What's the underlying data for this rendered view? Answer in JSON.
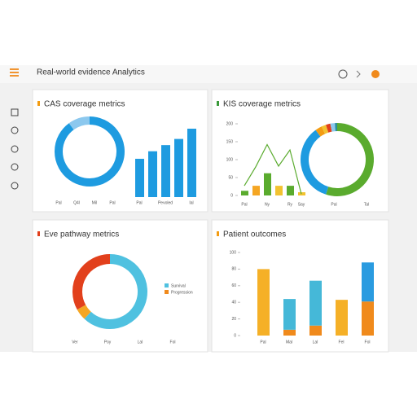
{
  "header": {
    "title": "Real-world evidence Analytics"
  },
  "panels": [
    {
      "title": "CAS coverage metrics",
      "accent": "#f39c12",
      "donut": {
        "values": [
          90,
          10
        ],
        "colors": [
          "#1e9be0",
          "#8cc8ee"
        ],
        "axis_labels": [
          "Pal",
          "Q4l",
          "Mil",
          "Pal"
        ]
      },
      "bars": {
        "categories": [
          "Pal",
          null,
          "Pevoled",
          null,
          "Ial"
        ],
        "values": [
          56,
          67,
          76,
          85,
          100
        ],
        "color": "#1e9be0",
        "ylim": [
          0,
          100
        ]
      }
    },
    {
      "title": "KIS coverage metrics",
      "accent": "#3a9a3a",
      "combo": {
        "categories": [
          "Pal",
          null,
          "Ny",
          null,
          "Ry",
          "Say"
        ],
        "bar_values": [
          13,
          27,
          62,
          27,
          27,
          9
        ],
        "bar_colors": [
          "#5aab2e",
          "#f5a623",
          "#5aab2e",
          "#f2c230",
          "#5aab2e",
          "#f2c230"
        ],
        "line_values": [
          27,
          80,
          142,
          82,
          127,
          4
        ],
        "line_color": "#5aab2e",
        "ylim": [
          0,
          200
        ],
        "yticks": [
          0,
          50,
          100,
          150,
          200
        ]
      },
      "donut": {
        "values": [
          55,
          35,
          3,
          2,
          2,
          2,
          1
        ],
        "colors": [
          "#5aab2e",
          "#1e9be0",
          "#f39c12",
          "#f2c230",
          "#e2401c",
          "#8cc8ee",
          "#2a8f9a"
        ],
        "axis_labels": [
          "Pal",
          "Tal"
        ]
      }
    },
    {
      "title": "Eve pathway metrics",
      "accent": "#e2401c",
      "donut": {
        "values": [
          62,
          5,
          33
        ],
        "colors": [
          "#4fc1e0",
          "#f5a623",
          "#e2401c"
        ],
        "axis_labels": [
          "Ver",
          "Poy",
          "Lal",
          "Fol"
        ]
      },
      "legend": [
        {
          "name": "Survival",
          "color": "#4fc1e0"
        },
        {
          "name": "Progression",
          "color": "#f08a1c"
        }
      ]
    },
    {
      "title": "Patient outcomes",
      "accent": "#f39c12",
      "stacked": {
        "categories": [
          "Pal",
          "Mal",
          "Lal",
          "Fel",
          "Fol"
        ],
        "ylim": [
          0,
          100
        ],
        "yticks": [
          0,
          20,
          40,
          60,
          80,
          100
        ],
        "series": [
          {
            "values": [
              80,
              7,
              12,
              43,
              41
            ],
            "colors": [
              "#f5b027",
              "#f08a1c",
              "#f08a1c",
              "#f5b027",
              "#f08a1c"
            ]
          },
          {
            "values": [
              0,
              37,
              54,
              0,
              47
            ],
            "colors": [
              "#45b8d8",
              "#45b8d8",
              "#45b8d8",
              "#45b8d8",
              "#2a9be0"
            ]
          }
        ]
      }
    }
  ]
}
